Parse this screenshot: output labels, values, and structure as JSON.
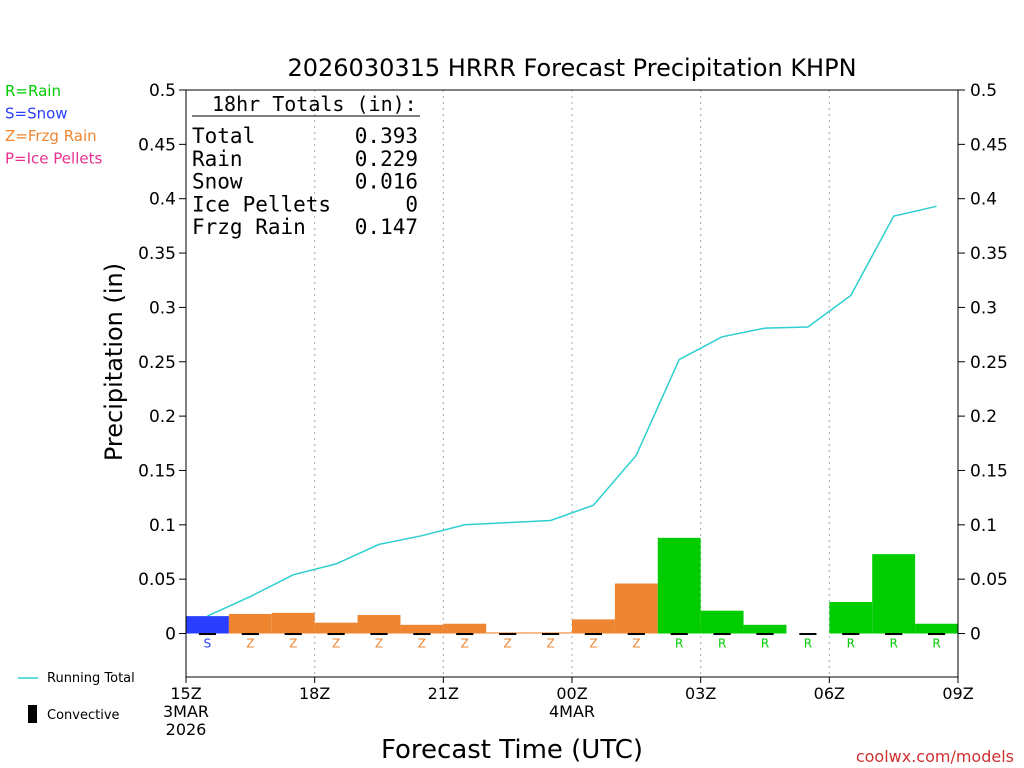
{
  "chart_data": {
    "type": "bar",
    "title": "2026030315 HRRR Forecast Precipitation KHPN",
    "xlabel": "Forecast Time (UTC)",
    "ylabel": "Precipitation (in)",
    "ylim": [
      -0.04,
      0.5
    ],
    "yticks": [
      "0.5",
      "0.45",
      "0.4",
      "0.35",
      "0.3",
      "0.25",
      "0.2",
      "0.15",
      "0.1",
      "0.05",
      "0"
    ],
    "ytick_values": [
      0.5,
      0.45,
      0.4,
      0.35,
      0.3,
      0.25,
      0.2,
      0.15,
      0.1,
      0.05,
      0
    ],
    "xlim": [
      0,
      18
    ],
    "xticks": [
      {
        "hour": 0,
        "lines": [
          "15Z",
          "3MAR",
          "2026"
        ]
      },
      {
        "hour": 3,
        "lines": [
          "18Z"
        ]
      },
      {
        "hour": 6,
        "lines": [
          "21Z"
        ]
      },
      {
        "hour": 9,
        "lines": [
          "00Z",
          "4MAR"
        ]
      },
      {
        "hour": 12,
        "lines": [
          "03Z"
        ]
      },
      {
        "hour": 15,
        "lines": [
          "06Z"
        ]
      },
      {
        "hour": 18,
        "lines": [
          "09Z"
        ]
      }
    ],
    "gridlines_hours": [
      3,
      6,
      9,
      12,
      15
    ],
    "series": [
      {
        "name": "Hourly Precipitation",
        "type": "bar",
        "hours": [
          1,
          2,
          3,
          4,
          5,
          6,
          7,
          8,
          9,
          10,
          11,
          12,
          13,
          14,
          15,
          16,
          17,
          18
        ],
        "values": [
          0.016,
          0.018,
          0.019,
          0.01,
          0.017,
          0.008,
          0.009,
          0.001,
          0.001,
          0.013,
          0.046,
          0.088,
          0.021,
          0.008,
          0.0,
          0.029,
          0.073,
          0.009
        ],
        "types": [
          "S",
          "Z",
          "Z",
          "Z",
          "Z",
          "Z",
          "Z",
          "Z",
          "Z",
          "Z",
          "Z",
          "R",
          "R",
          "R",
          "R",
          "R",
          "R",
          "R"
        ]
      },
      {
        "name": "Running Total",
        "type": "line",
        "hours": [
          0.5,
          1.5,
          2.5,
          3.5,
          4.5,
          5.5,
          6.5,
          7.5,
          8.5,
          9.5,
          10.5,
          11.5,
          12.5,
          13.5,
          14.5,
          15.5,
          16.5,
          17.5
        ],
        "values": [
          0.016,
          0.034,
          0.054,
          0.064,
          0.082,
          0.09,
          0.1,
          0.102,
          0.104,
          0.118,
          0.164,
          0.252,
          0.273,
          0.281,
          0.282,
          0.311,
          0.384,
          0.393
        ]
      }
    ],
    "type_colors": {
      "R": "#00cc00",
      "S": "#2a3eff",
      "Z": "#ee8530",
      "P": "#e8308e"
    },
    "line_color": "#2ecfd0",
    "legend": {
      "types": [
        {
          "label": "R=Rain",
          "color": "#00cc00"
        },
        {
          "label": "S=Snow",
          "color": "#2a3eff"
        },
        {
          "label": "Z=Frzg Rain",
          "color": "#ee8530"
        },
        {
          "label": "P=Ice Pellets",
          "color": "#e8308e"
        }
      ],
      "running_total": "Running Total",
      "convective": "Convective"
    },
    "totals": {
      "header": "18hr Totals (in):",
      "rows": [
        {
          "label": "Total",
          "value": "0.393"
        },
        {
          "label": "Rain",
          "value": "0.229"
        },
        {
          "label": "Snow",
          "value": "0.016"
        },
        {
          "label": "Ice Pellets",
          "value": "0"
        },
        {
          "label": "Frzg Rain",
          "value": "0.147"
        }
      ]
    },
    "credit": "coolwx.com/models"
  }
}
